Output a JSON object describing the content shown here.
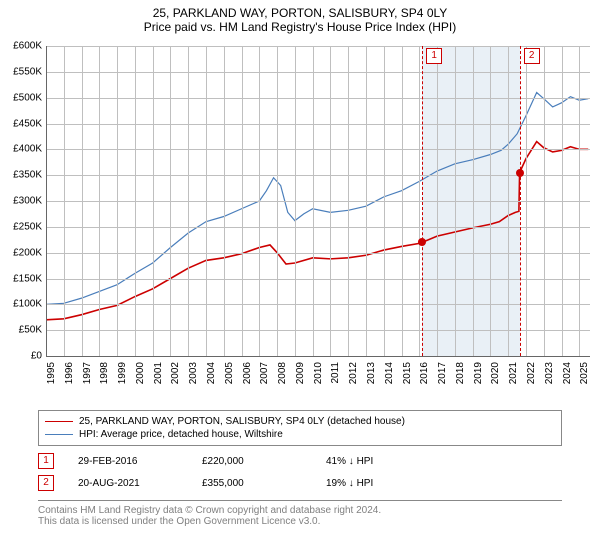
{
  "title_line1": "25, PARKLAND WAY, PORTON, SALISBURY, SP4 0LY",
  "title_line2": "Price paid vs. HM Land Registry's House Price Index (HPI)",
  "chart": {
    "type": "line",
    "background_color": "#ffffff",
    "grid_color": "#bfbfbf",
    "x_years": [
      1995,
      1996,
      1997,
      1998,
      1999,
      2000,
      2001,
      2002,
      2003,
      2004,
      2005,
      2006,
      2007,
      2008,
      2009,
      2010,
      2011,
      2012,
      2013,
      2014,
      2015,
      2016,
      2017,
      2018,
      2019,
      2020,
      2021,
      2022,
      2023,
      2024,
      2025
    ],
    "x_min": 1995,
    "x_max": 2025.6,
    "y_min": 0,
    "y_max": 600000,
    "y_tick_step": 50000,
    "y_tick_labels": [
      "£0",
      "£50K",
      "£100K",
      "£150K",
      "£200K",
      "£250K",
      "£300K",
      "£350K",
      "£400K",
      "£450K",
      "£500K",
      "£550K",
      "£600K"
    ],
    "shaded_start": 2016.16,
    "shaded_end": 2021.64,
    "vlines": [
      2016.16,
      2021.64
    ],
    "marker_labels": [
      "1",
      "2"
    ],
    "series": [
      {
        "name": "25, PARKLAND WAY, PORTON, SALISBURY, SP4 0LY (detached house)",
        "color": "#cc0000",
        "line_width": 1.6,
        "data": [
          [
            1995,
            70000
          ],
          [
            1996,
            72000
          ],
          [
            1997,
            80000
          ],
          [
            1998,
            90000
          ],
          [
            1999,
            98000
          ],
          [
            2000,
            115000
          ],
          [
            2001,
            130000
          ],
          [
            2002,
            150000
          ],
          [
            2003,
            170000
          ],
          [
            2004,
            185000
          ],
          [
            2005,
            190000
          ],
          [
            2006,
            198000
          ],
          [
            2007,
            210000
          ],
          [
            2007.6,
            215000
          ],
          [
            2008,
            200000
          ],
          [
            2008.5,
            178000
          ],
          [
            2009,
            180000
          ],
          [
            2010,
            190000
          ],
          [
            2011,
            188000
          ],
          [
            2012,
            190000
          ],
          [
            2013,
            195000
          ],
          [
            2014,
            205000
          ],
          [
            2015,
            212000
          ],
          [
            2016,
            218000
          ],
          [
            2016.16,
            220000
          ],
          [
            2017,
            232000
          ],
          [
            2018,
            240000
          ],
          [
            2019,
            248000
          ],
          [
            2020,
            255000
          ],
          [
            2020.5,
            260000
          ],
          [
            2021,
            272000
          ],
          [
            2021.4,
            278000
          ],
          [
            2021.6,
            280000
          ],
          [
            2021.64,
            355000
          ],
          [
            2022,
            382000
          ],
          [
            2022.6,
            415000
          ],
          [
            2023,
            403000
          ],
          [
            2023.5,
            395000
          ],
          [
            2024,
            398000
          ],
          [
            2024.5,
            405000
          ],
          [
            2025,
            400000
          ],
          [
            2025.5,
            400000
          ]
        ]
      },
      {
        "name": "HPI: Average price, detached house, Wiltshire",
        "color": "#4a7ebb",
        "line_width": 1.2,
        "data": [
          [
            1995,
            100000
          ],
          [
            1996,
            102000
          ],
          [
            1997,
            112000
          ],
          [
            1998,
            125000
          ],
          [
            1999,
            138000
          ],
          [
            2000,
            160000
          ],
          [
            2001,
            180000
          ],
          [
            2002,
            210000
          ],
          [
            2003,
            238000
          ],
          [
            2004,
            260000
          ],
          [
            2005,
            270000
          ],
          [
            2006,
            285000
          ],
          [
            2007,
            300000
          ],
          [
            2007.4,
            320000
          ],
          [
            2007.8,
            345000
          ],
          [
            2008.2,
            330000
          ],
          [
            2008.6,
            278000
          ],
          [
            2009,
            262000
          ],
          [
            2009.5,
            275000
          ],
          [
            2010,
            285000
          ],
          [
            2011,
            278000
          ],
          [
            2012,
            282000
          ],
          [
            2013,
            290000
          ],
          [
            2014,
            308000
          ],
          [
            2015,
            320000
          ],
          [
            2016,
            338000
          ],
          [
            2017,
            358000
          ],
          [
            2018,
            372000
          ],
          [
            2019,
            380000
          ],
          [
            2020,
            390000
          ],
          [
            2020.6,
            398000
          ],
          [
            2021,
            410000
          ],
          [
            2021.5,
            430000
          ],
          [
            2022,
            465000
          ],
          [
            2022.6,
            510000
          ],
          [
            2023,
            498000
          ],
          [
            2023.5,
            482000
          ],
          [
            2024,
            490000
          ],
          [
            2024.5,
            502000
          ],
          [
            2025,
            495000
          ],
          [
            2025.5,
            498000
          ]
        ]
      }
    ],
    "sale_dots": [
      {
        "year": 2016.16,
        "value": 220000
      },
      {
        "year": 2021.64,
        "value": 355000
      }
    ]
  },
  "legend": {
    "items": [
      {
        "color": "#cc0000",
        "width": 1.6,
        "label": "25, PARKLAND WAY, PORTON, SALISBURY, SP4 0LY (detached house)"
      },
      {
        "color": "#4a7ebb",
        "width": 1.2,
        "label": "HPI: Average price, detached house, Wiltshire"
      }
    ]
  },
  "sales": [
    {
      "n": "1",
      "date": "29-FEB-2016",
      "price": "£220,000",
      "hpi": "41% ↓ HPI"
    },
    {
      "n": "2",
      "date": "20-AUG-2021",
      "price": "£355,000",
      "hpi": "19% ↓ HPI"
    }
  ],
  "footnote_line1": "Contains HM Land Registry data © Crown copyright and database right 2024.",
  "footnote_line2": "This data is licensed under the Open Government Licence v3.0."
}
